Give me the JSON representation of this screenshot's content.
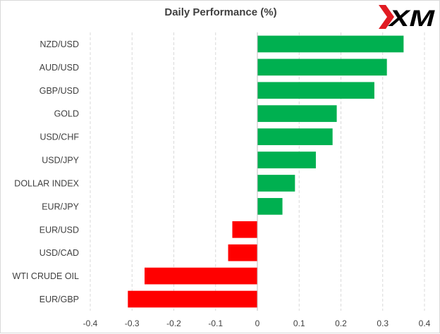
{
  "logo_text": "XM",
  "colors": {
    "positive": "#00b050",
    "negative": "#ff0000",
    "logo_red": "#e11b22",
    "grid": "#d9d9d9",
    "text": "#404040"
  },
  "chart_data": {
    "type": "bar",
    "orientation": "horizontal",
    "title": "Daily Performance (%)",
    "xlabel": "",
    "ylabel": "",
    "xlim": [
      -0.4,
      0.4
    ],
    "x_ticks": [
      "-0.4",
      "-0.3",
      "-0.2",
      "-0.1",
      "0",
      "0.1",
      "0.2",
      "0.3",
      "0.4"
    ],
    "grid": "vertical dashed",
    "legend": "none",
    "categories": [
      "NZD/USD",
      "AUD/USD",
      "GBP/USD",
      "GOLD",
      "USD/CHF",
      "USD/JPY",
      "DOLLAR INDEX",
      "EUR/JPY",
      "EUR/USD",
      "USD/CAD",
      "WTI CRUDE OIL",
      "EUR/GBP"
    ],
    "values": [
      0.35,
      0.31,
      0.28,
      0.19,
      0.18,
      0.14,
      0.09,
      0.06,
      -0.06,
      -0.07,
      -0.27,
      -0.31
    ]
  }
}
